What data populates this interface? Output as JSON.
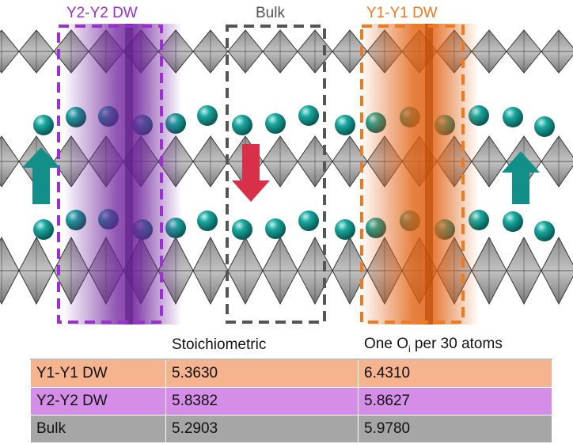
{
  "regions": [
    {
      "label": "Y2-Y2 DW",
      "color": "#9b30d0"
    },
    {
      "label": "Bulk",
      "color": "#555555"
    },
    {
      "label": "Y1-Y1 DW",
      "color": "#ee7a22"
    }
  ],
  "table": {
    "columns": [
      "",
      "Stoichiometric",
      "One O",
      "i",
      " per 30 atoms"
    ],
    "rows": [
      {
        "name": "Y1-Y1 DW",
        "stoichiometric": "5.3630",
        "one_oi": "6.4310",
        "color": "#f5b38e"
      },
      {
        "name": "Y2-Y2 DW",
        "stoichiometric": "5.8382",
        "one_oi": "5.8627",
        "color": "#d48ee8"
      },
      {
        "name": "Bulk",
        "stoichiometric": "5.2903",
        "one_oi": "5.9780",
        "color": "#a6a6a6"
      }
    ]
  },
  "colors": {
    "arrow_up": "#138f8a",
    "arrow_down": "#d9304a",
    "atom": "#1a9a92",
    "polyhedra": "#9a9a9a"
  }
}
